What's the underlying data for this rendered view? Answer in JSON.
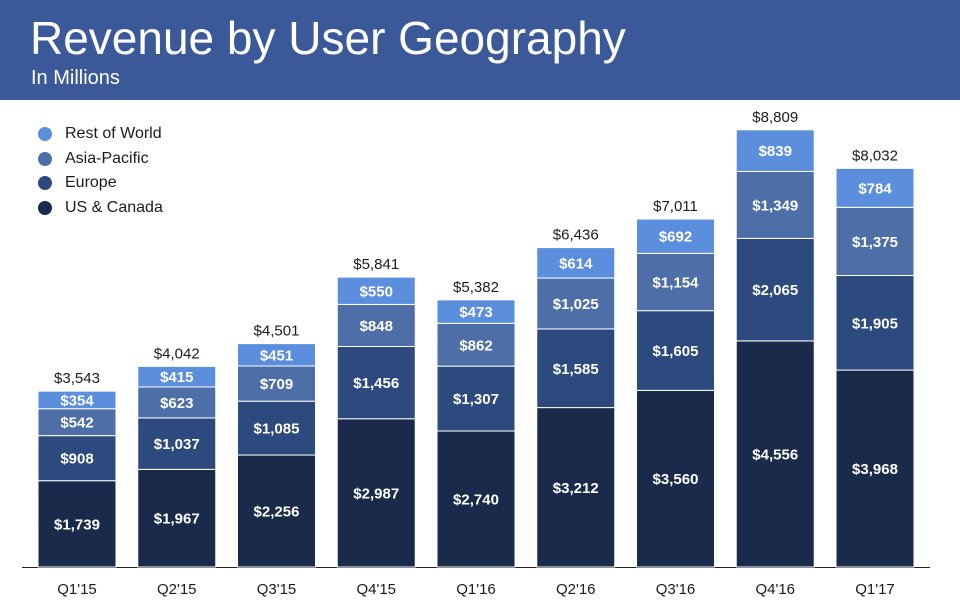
{
  "header": {
    "title": "Revenue by User Geography",
    "subtitle": "In Millions"
  },
  "colors": {
    "header_bg": "#3b5998",
    "us_canada": "#1a2a4a",
    "europe": "#2c4a7d",
    "asia_pacific": "#4d6ea6",
    "rest_of_world": "#5b8fde",
    "label_text": "#ffffff",
    "axis_text": "#1b1b1b"
  },
  "legend": [
    {
      "label": "Rest of World",
      "color": "#5b8fde"
    },
    {
      "label": "Asia-Pacific",
      "color": "#4d6ea6"
    },
    {
      "label": "Europe",
      "color": "#2c4a7d"
    },
    {
      "label": "US & Canada",
      "color": "#1a2a4a"
    }
  ],
  "chart_data": {
    "type": "bar",
    "stacked": true,
    "title": "Revenue by User Geography",
    "subtitle": "In Millions",
    "categories": [
      "Q1'15",
      "Q2'15",
      "Q3'15",
      "Q4'15",
      "Q1'16",
      "Q2'16",
      "Q3'16",
      "Q4'16",
      "Q1'17"
    ],
    "series": [
      {
        "name": "US & Canada",
        "color": "#1a2a4a",
        "values": [
          1739,
          1967,
          2256,
          2987,
          2740,
          3212,
          3560,
          4556,
          3968
        ],
        "labels": [
          "$1,739",
          "$1,967",
          "$2,256",
          "$2,987",
          "$2,740",
          "$3,212",
          "$3,560",
          "$4,556",
          "$3,968"
        ]
      },
      {
        "name": "Europe",
        "color": "#2c4a7d",
        "values": [
          908,
          1037,
          1085,
          1456,
          1307,
          1585,
          1605,
          2065,
          1905
        ],
        "labels": [
          "$908",
          "$1,037",
          "$1,085",
          "$1,456",
          "$1,307",
          "$1,585",
          "$1,605",
          "$2,065",
          "$1,905"
        ]
      },
      {
        "name": "Asia-Pacific",
        "color": "#4d6ea6",
        "values": [
          542,
          623,
          709,
          848,
          862,
          1025,
          1154,
          1349,
          1375
        ],
        "labels": [
          "$542",
          "$623",
          "$709",
          "$848",
          "$862",
          "$1,025",
          "$1,154",
          "$1,349",
          "$1,375"
        ]
      },
      {
        "name": "Rest of World",
        "color": "#5b8fde",
        "values": [
          354,
          415,
          451,
          550,
          473,
          614,
          692,
          839,
          784
        ],
        "labels": [
          "$354",
          "$415",
          "$451",
          "$550",
          "$473",
          "$614",
          "$692",
          "$839",
          "$784"
        ]
      }
    ],
    "totals": [
      3543,
      4042,
      4501,
      5841,
      5382,
      6436,
      7011,
      8809,
      8032
    ],
    "total_labels": [
      "$3,543",
      "$4,042",
      "$4,501",
      "$5,841",
      "$5,382",
      "$6,436",
      "$7,011",
      "$8,809",
      "$8,032"
    ],
    "ylim": [
      0,
      9000
    ],
    "grid": false,
    "legend_position": "top-left"
  }
}
